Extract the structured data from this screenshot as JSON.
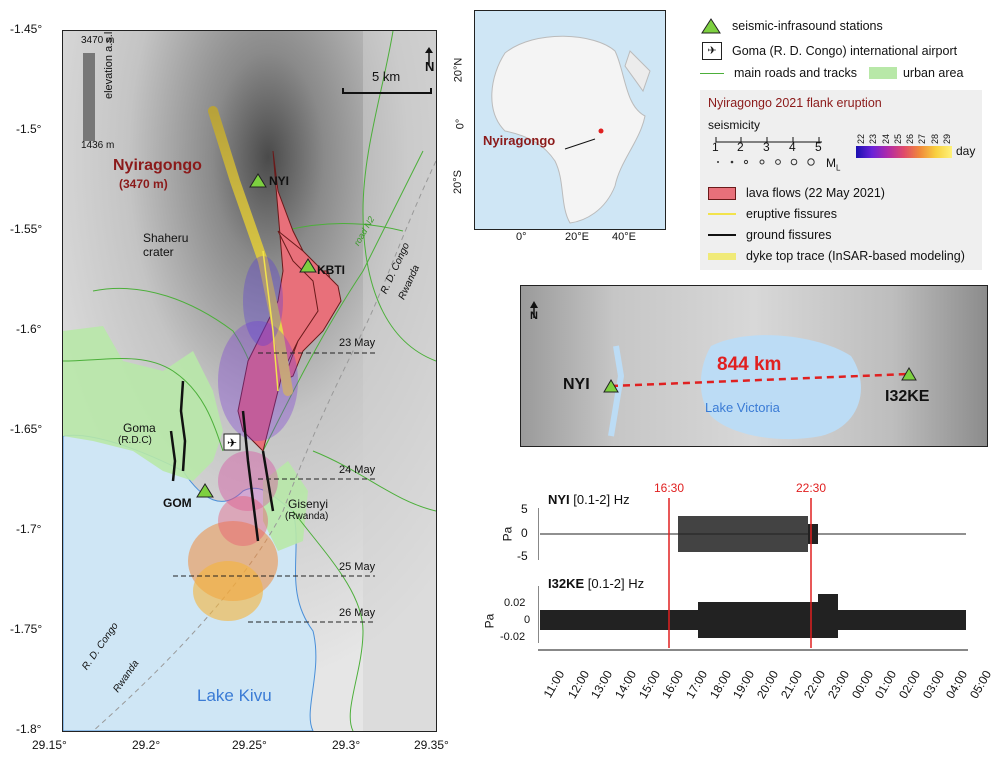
{
  "main_map": {
    "lat_ticks": [
      "-1.45°",
      "-1.5°",
      "-1.55°",
      "-1.6°",
      "-1.65°",
      "-1.7°",
      "-1.75°",
      "-1.8°"
    ],
    "lon_ticks": [
      "29.15°",
      "29.2°",
      "29.25°",
      "29.3°",
      "29.35°"
    ],
    "elevation_legend": {
      "max": "3470 m",
      "min": "1436 m",
      "label": "elevation a.s.l."
    },
    "scale_bar": "5 km",
    "north": "N",
    "labels": {
      "volcano": "Nyiragongo",
      "volcano_elev": "(3470 m)",
      "crater": "Shaheru crater",
      "road": "road N2",
      "border_top_1": "R. D. Congo",
      "border_top_2": "Rwanda",
      "border_bot_1": "R. D. Congo",
      "border_bot_2": "Rwanda",
      "goma": "Goma",
      "goma_sub": "(R.D.C)",
      "gisenyi": "Gisenyi",
      "gisenyi_sub": "(Rwanda)",
      "lake": "Lake Kivu",
      "nyi": "NYI",
      "kbti": "KBTI",
      "gom": "GOM"
    },
    "dates": [
      "23 May",
      "24 May",
      "25 May",
      "26 May"
    ]
  },
  "inset_africa": {
    "lat_ticks": [
      "20°N",
      "0°",
      "20°S"
    ],
    "lon_ticks": [
      "0°",
      "20°E",
      "40°E"
    ],
    "label": "Nyiragongo"
  },
  "legend": {
    "stations": "seismic-infrasound stations",
    "airport": "Goma (R. D. Congo) international airport",
    "roads": "main roads and tracks",
    "urban": "urban area",
    "eruption_title": "Nyiragongo 2021 flank eruption",
    "seismicity": "seismicity",
    "ml_ticks": [
      "1",
      "2",
      "3",
      "4",
      "5"
    ],
    "ml_unit": "M",
    "ml_sub": "L",
    "day_ticks": [
      "22",
      "23",
      "24",
      "25",
      "26",
      "27",
      "28",
      "29"
    ],
    "day_label": "day",
    "lava": "lava flows (22 May 2021)",
    "eruptive": "eruptive fissures",
    "ground": "ground fissures",
    "dyke": "dyke top trace (InSAR-based modeling)"
  },
  "regional_map": {
    "distance": "844 km",
    "lake": "Lake Victoria",
    "nyi": "NYI",
    "i32ke": "I32KE",
    "north": "N"
  },
  "waveforms": {
    "markers": [
      "16:30",
      "22:30"
    ],
    "nyi_station": "NYI",
    "nyi_band": "[0.1-2] Hz",
    "i32_station": "I32KE",
    "i32_band": "[0.1-2] Hz",
    "nyi_yticks": [
      "5",
      "0",
      "-5"
    ],
    "i32_yticks": [
      "0.02",
      "0",
      "-0.02"
    ],
    "ylabel": "Pa",
    "time_ticks": [
      "11:00",
      "12:00",
      "13:00",
      "14:00",
      "15:00",
      "16:00",
      "17:00",
      "18:00",
      "19:00",
      "20:00",
      "21:00",
      "22:00",
      "23:00",
      "00:00",
      "01:00",
      "02:00",
      "03:00",
      "04:00",
      "05:00"
    ]
  },
  "colors": {
    "red_label": "#8b1a1a",
    "lava": "#e8707a",
    "station": "#7dd040",
    "road": "#4caf3a",
    "urban": "#b8e8a8",
    "marker": "#e02020",
    "water": "#cfe6f5",
    "lake_text": "#3a7bd5"
  }
}
